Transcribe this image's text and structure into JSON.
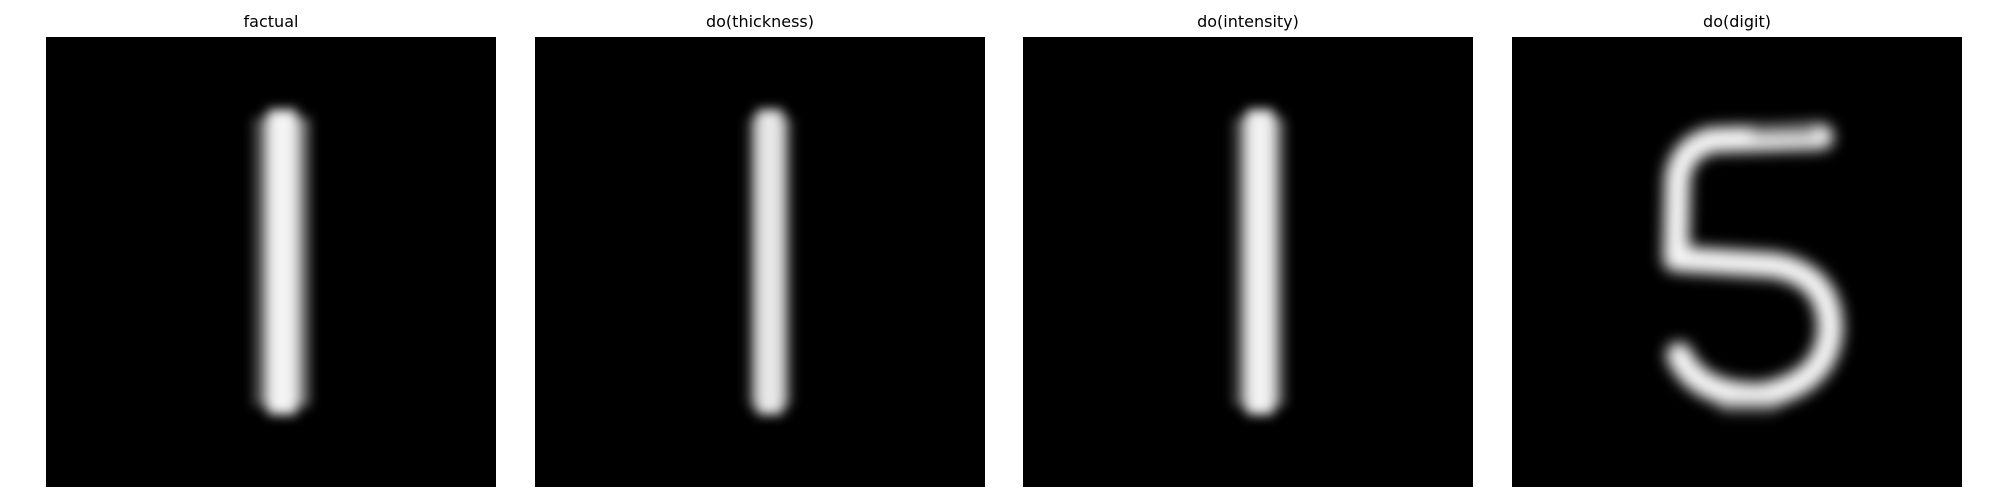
{
  "panels": [
    {
      "title": "factual"
    },
    {
      "title": "do(thickness)"
    },
    {
      "title": "do(intensity)"
    },
    {
      "title": "do(digit)"
    }
  ],
  "colors": {
    "background": "#ffffff",
    "image_bg": "#000000",
    "stroke": "#f4f4f4"
  }
}
